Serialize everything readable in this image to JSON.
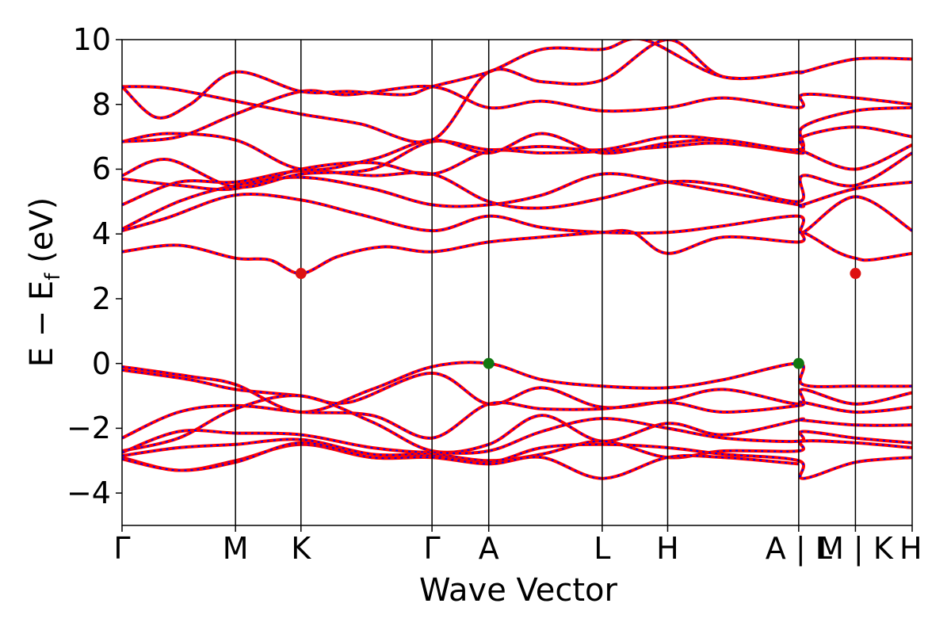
{
  "chart_data": {
    "type": "line",
    "xlabel": "Wave Vector",
    "ylabel_main": "E − E",
    "ylabel_sub": "f",
    "ylabel_unit": " (eV)",
    "ylim": [
      -5,
      10
    ],
    "yticks": [
      "−4",
      "−2",
      "0",
      "2",
      "4",
      "6",
      "8",
      "10"
    ],
    "ytick_values": [
      -4,
      -2,
      0,
      2,
      4,
      6,
      8,
      10
    ],
    "kpoints": [
      {
        "label": "Γ",
        "x": 0.0
      },
      {
        "label": "M",
        "x": 1.0
      },
      {
        "label": "K",
        "x": 1.577
      },
      {
        "label": "Γ",
        "x": 2.732
      },
      {
        "label": "A",
        "x": 3.232
      },
      {
        "label": "L",
        "x": 4.232
      },
      {
        "label": "H",
        "x": 4.809
      },
      {
        "label": "A | L",
        "x": 5.964
      },
      {
        "label": "M | K",
        "x": 6.464
      },
      {
        "label": "H",
        "x": 6.964
      }
    ],
    "xlim": [
      0,
      6.964
    ],
    "series_colors": {
      "line_a": "#ff0000",
      "line_b": "#0000ff"
    },
    "cbm_points": [
      {
        "x": 1.577,
        "y": 2.78
      },
      {
        "x": 6.464,
        "y": 2.78
      }
    ],
    "vbm_points": [
      {
        "x": 3.232,
        "y": 0.0
      },
      {
        "x": 5.964,
        "y": 0.0
      }
    ],
    "cbm_color": "#dd1111",
    "vbm_color": "#117711",
    "bands": [
      [
        [
          0,
          3.45
        ],
        [
          0.5,
          3.65
        ],
        [
          1.0,
          3.25
        ],
        [
          1.3,
          3.2
        ],
        [
          1.577,
          2.78
        ],
        [
          1.9,
          3.3
        ],
        [
          2.3,
          3.6
        ],
        [
          2.732,
          3.45
        ],
        [
          3.232,
          3.75
        ],
        [
          3.7,
          3.9
        ],
        [
          4.232,
          4.05
        ],
        [
          4.5,
          4.05
        ],
        [
          4.809,
          3.4
        ],
        [
          5.3,
          3.9
        ],
        [
          5.964,
          3.75
        ],
        [
          6.0,
          4.05
        ],
        [
          6.3,
          3.45
        ],
        [
          6.464,
          3.25
        ],
        [
          6.6,
          3.2
        ],
        [
          6.964,
          3.4
        ]
      ],
      [
        [
          0,
          4.1
        ],
        [
          0.4,
          4.5
        ],
        [
          1.0,
          5.2
        ],
        [
          1.577,
          5.05
        ],
        [
          2.1,
          4.6
        ],
        [
          2.732,
          4.1
        ],
        [
          3.232,
          4.55
        ],
        [
          3.7,
          4.2
        ],
        [
          4.232,
          4.05
        ],
        [
          4.809,
          4.05
        ],
        [
          5.3,
          4.25
        ],
        [
          5.964,
          4.55
        ],
        [
          6.0,
          4.05
        ],
        [
          6.464,
          5.15
        ],
        [
          6.964,
          4.1
        ]
      ],
      [
        [
          0,
          4.15
        ],
        [
          0.5,
          5.0
        ],
        [
          1.0,
          5.5
        ],
        [
          1.577,
          5.75
        ],
        [
          2.2,
          5.4
        ],
        [
          2.732,
          4.9
        ],
        [
          3.232,
          4.9
        ],
        [
          3.7,
          5.2
        ],
        [
          4.232,
          5.85
        ],
        [
          4.809,
          5.6
        ],
        [
          5.3,
          5.3
        ],
        [
          5.964,
          4.9
        ],
        [
          6.0,
          4.9
        ],
        [
          6.464,
          5.4
        ],
        [
          6.964,
          5.6
        ]
      ],
      [
        [
          0,
          4.9
        ],
        [
          0.5,
          5.6
        ],
        [
          1.0,
          5.6
        ],
        [
          1.577,
          5.95
        ],
        [
          2.2,
          5.8
        ],
        [
          2.732,
          5.85
        ],
        [
          3.232,
          5.0
        ],
        [
          3.7,
          4.8
        ],
        [
          4.232,
          5.1
        ],
        [
          4.809,
          5.6
        ],
        [
          5.3,
          5.5
        ],
        [
          5.964,
          5.0
        ],
        [
          6.0,
          5.8
        ],
        [
          6.464,
          5.5
        ],
        [
          6.964,
          6.5
        ]
      ],
      [
        [
          0,
          5.7
        ],
        [
          0.5,
          5.5
        ],
        [
          1.0,
          5.4
        ],
        [
          1.577,
          6.0
        ],
        [
          2.2,
          6.2
        ],
        [
          2.732,
          5.85
        ],
        [
          3.232,
          6.55
        ],
        [
          3.7,
          6.5
        ],
        [
          4.232,
          6.55
        ],
        [
          4.809,
          6.7
        ],
        [
          5.3,
          6.8
        ],
        [
          5.964,
          6.5
        ],
        [
          6.0,
          6.55
        ],
        [
          6.464,
          6.0
        ],
        [
          6.964,
          6.75
        ]
      ],
      [
        [
          0,
          5.8
        ],
        [
          0.4,
          6.3
        ],
        [
          1.0,
          5.45
        ],
        [
          1.577,
          5.85
        ],
        [
          2.2,
          6.0
        ],
        [
          2.732,
          6.85
        ],
        [
          3.232,
          6.6
        ],
        [
          3.7,
          6.7
        ],
        [
          4.232,
          6.6
        ],
        [
          4.809,
          7.0
        ],
        [
          5.3,
          6.9
        ],
        [
          5.964,
          6.55
        ],
        [
          6.0,
          7.0
        ],
        [
          6.464,
          7.3
        ],
        [
          6.964,
          7.0
        ]
      ],
      [
        [
          0,
          6.85
        ],
        [
          0.4,
          7.1
        ],
        [
          1.0,
          6.9
        ],
        [
          1.577,
          6.0
        ],
        [
          2.2,
          6.3
        ],
        [
          2.732,
          6.9
        ],
        [
          3.232,
          6.5
        ],
        [
          3.7,
          7.1
        ],
        [
          4.232,
          6.5
        ],
        [
          4.809,
          6.8
        ],
        [
          5.3,
          6.9
        ],
        [
          5.964,
          6.6
        ],
        [
          6.0,
          7.3
        ],
        [
          6.464,
          7.8
        ],
        [
          6.964,
          7.9
        ]
      ],
      [
        [
          0,
          6.85
        ],
        [
          0.5,
          7.0
        ],
        [
          1.0,
          7.7
        ],
        [
          1.577,
          8.4
        ],
        [
          2.0,
          8.3
        ],
        [
          2.732,
          8.55
        ],
        [
          3.232,
          7.9
        ],
        [
          3.7,
          8.1
        ],
        [
          4.232,
          7.8
        ],
        [
          4.809,
          7.9
        ],
        [
          5.3,
          8.2
        ],
        [
          5.964,
          7.9
        ],
        [
          6.0,
          8.3
        ],
        [
          6.464,
          8.2
        ],
        [
          6.964,
          8.0
        ]
      ],
      [
        [
          0,
          8.55
        ],
        [
          0.4,
          8.5
        ],
        [
          1.0,
          8.1
        ],
        [
          1.577,
          7.7
        ],
        [
          2.1,
          7.4
        ],
        [
          2.732,
          6.9
        ],
        [
          3.232,
          9.0
        ],
        [
          3.7,
          8.7
        ],
        [
          4.232,
          8.75
        ],
        [
          4.809,
          10.0
        ],
        [
          5.3,
          8.85
        ],
        [
          5.964,
          9.0
        ],
        [
          6.0,
          9.0
        ],
        [
          6.464,
          9.4
        ],
        [
          6.964,
          9.4
        ]
      ],
      [
        [
          0,
          8.55
        ],
        [
          0.3,
          7.6
        ],
        [
          0.6,
          8.0
        ],
        [
          1.0,
          9.0
        ],
        [
          1.577,
          8.4
        ],
        [
          2.0,
          8.4
        ],
        [
          2.5,
          8.3
        ],
        [
          2.732,
          8.55
        ],
        [
          3.232,
          9.0
        ],
        [
          3.7,
          9.7
        ],
        [
          4.232,
          9.7
        ],
        [
          4.6,
          10.0
        ],
        [
          5.3,
          8.85
        ],
        [
          5.964,
          9.0
        ]
      ],
      [
        [
          0,
          -0.1
        ],
        [
          0.6,
          -0.4
        ],
        [
          1.0,
          -0.65
        ],
        [
          1.577,
          -1.5
        ],
        [
          2.2,
          -0.8
        ],
        [
          2.732,
          -0.1
        ],
        [
          3.232,
          0.0
        ],
        [
          3.7,
          -0.5
        ],
        [
          4.232,
          -0.7
        ],
        [
          4.809,
          -0.75
        ],
        [
          5.3,
          -0.5
        ],
        [
          5.964,
          0.0
        ],
        [
          6.0,
          -0.65
        ],
        [
          6.464,
          -0.7
        ],
        [
          6.964,
          -0.7
        ]
      ],
      [
        [
          0,
          -0.2
        ],
        [
          0.6,
          -0.5
        ],
        [
          1.0,
          -0.8
        ],
        [
          1.577,
          -1.0
        ],
        [
          2.0,
          -1.2
        ],
        [
          2.732,
          -0.3
        ],
        [
          3.232,
          -1.25
        ],
        [
          3.7,
          -0.75
        ],
        [
          4.232,
          -1.35
        ],
        [
          4.809,
          -1.15
        ],
        [
          5.3,
          -0.8
        ],
        [
          5.964,
          -1.25
        ],
        [
          6.0,
          -0.8
        ],
        [
          6.464,
          -1.25
        ],
        [
          6.964,
          -0.9
        ]
      ],
      [
        [
          0,
          -2.3
        ],
        [
          0.5,
          -1.5
        ],
        [
          1.0,
          -1.3
        ],
        [
          1.577,
          -1.5
        ],
        [
          2.2,
          -1.6
        ],
        [
          2.732,
          -2.3
        ],
        [
          3.232,
          -1.25
        ],
        [
          3.7,
          -1.4
        ],
        [
          4.232,
          -1.4
        ],
        [
          4.809,
          -1.2
        ],
        [
          5.3,
          -1.5
        ],
        [
          5.964,
          -1.3
        ],
        [
          6.0,
          -1.2
        ],
        [
          6.464,
          -1.5
        ],
        [
          6.964,
          -1.35
        ]
      ],
      [
        [
          0,
          -2.7
        ],
        [
          0.5,
          -2.3
        ],
        [
          1.0,
          -1.4
        ],
        [
          1.577,
          -1.0
        ],
        [
          2.2,
          -1.8
        ],
        [
          2.732,
          -2.7
        ],
        [
          3.232,
          -2.5
        ],
        [
          3.7,
          -1.6
        ],
        [
          4.232,
          -2.4
        ],
        [
          4.809,
          -1.85
        ],
        [
          5.3,
          -2.2
        ],
        [
          5.964,
          -1.75
        ],
        [
          6.0,
          -1.75
        ],
        [
          6.464,
          -1.9
        ],
        [
          6.964,
          -1.9
        ]
      ],
      [
        [
          0,
          -2.75
        ],
        [
          0.5,
          -2.1
        ],
        [
          1.0,
          -2.15
        ],
        [
          1.577,
          -2.2
        ],
        [
          2.2,
          -2.6
        ],
        [
          2.732,
          -2.75
        ],
        [
          3.232,
          -2.7
        ],
        [
          3.7,
          -2.1
        ],
        [
          4.232,
          -1.7
        ],
        [
          4.809,
          -2.0
        ],
        [
          5.3,
          -2.3
        ],
        [
          5.964,
          -2.4
        ],
        [
          6.0,
          -2.1
        ],
        [
          6.464,
          -2.3
        ],
        [
          6.964,
          -2.45
        ]
      ],
      [
        [
          0,
          -2.85
        ],
        [
          0.5,
          -2.6
        ],
        [
          1.0,
          -2.5
        ],
        [
          1.577,
          -2.35
        ],
        [
          2.2,
          -2.8
        ],
        [
          2.732,
          -2.8
        ],
        [
          3.232,
          -3.0
        ],
        [
          3.7,
          -2.8
        ],
        [
          4.232,
          -2.4
        ],
        [
          4.809,
          -2.9
        ],
        [
          5.3,
          -2.7
        ],
        [
          5.964,
          -2.7
        ],
        [
          6.0,
          -2.4
        ],
        [
          6.464,
          -2.45
        ],
        [
          6.964,
          -2.6
        ]
      ],
      [
        [
          0,
          -2.9
        ],
        [
          0.5,
          -3.3
        ],
        [
          1.0,
          -3.0
        ],
        [
          1.577,
          -2.5
        ],
        [
          2.2,
          -2.9
        ],
        [
          2.732,
          -2.85
        ],
        [
          3.232,
          -3.05
        ],
        [
          3.7,
          -2.6
        ],
        [
          4.232,
          -2.5
        ],
        [
          4.809,
          -2.6
        ],
        [
          5.3,
          -2.8
        ],
        [
          5.964,
          -3.0
        ],
        [
          6.0,
          -3.55
        ],
        [
          6.464,
          -3.05
        ],
        [
          6.964,
          -2.9
        ]
      ],
      [
        [
          0,
          -2.95
        ],
        [
          0.5,
          -3.3
        ],
        [
          1.0,
          -3.05
        ],
        [
          1.577,
          -2.45
        ],
        [
          2.2,
          -2.9
        ],
        [
          2.732,
          -2.9
        ],
        [
          3.232,
          -3.1
        ],
        [
          3.7,
          -2.9
        ],
        [
          4.232,
          -3.55
        ],
        [
          4.809,
          -2.9
        ],
        [
          5.3,
          -2.9
        ],
        [
          5.964,
          -3.1
        ]
      ]
    ]
  }
}
